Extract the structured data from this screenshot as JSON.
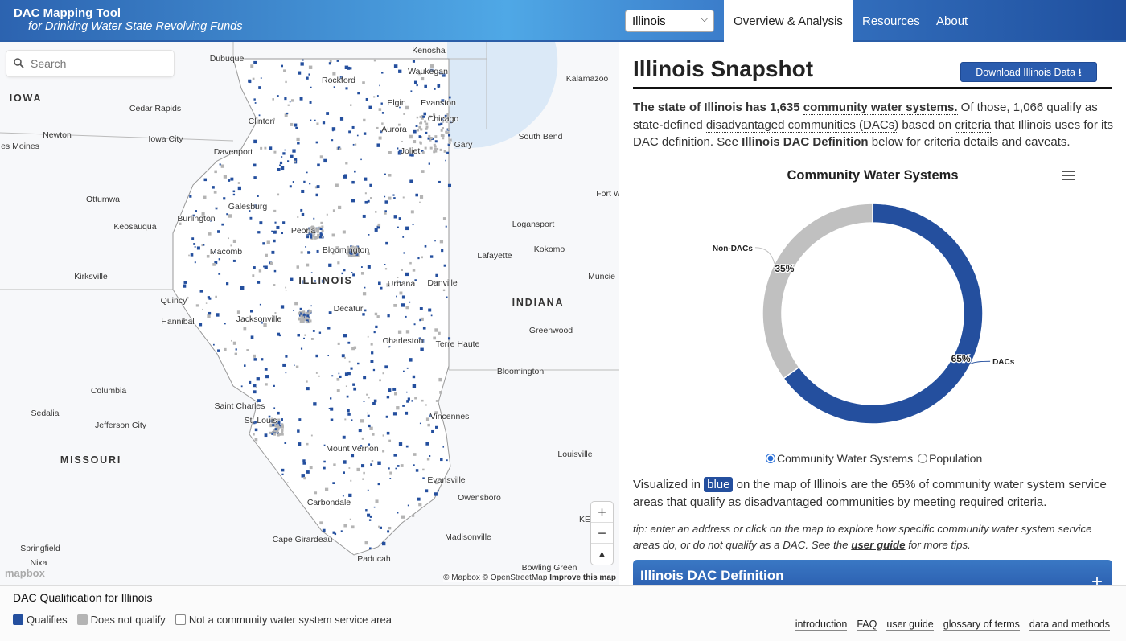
{
  "header": {
    "title": "DAC Mapping Tool",
    "subtitle": "for Drinking Water State Revolving Funds",
    "state_select": "Illinois",
    "nav": [
      "Overview & Analysis",
      "Resources",
      "About"
    ],
    "active_tab": "Overview & Analysis"
  },
  "map": {
    "search_placeholder": "Search",
    "labels": [
      "Kenosha",
      "Dubuque",
      "Waukegan",
      "Rockford",
      "Kalamazoo",
      "IOWA",
      "Elgin",
      "Evanston",
      "Cedar Rapids",
      "Chicago",
      "Clinton",
      "Aurora",
      "Newton",
      "Iowa City",
      "South Bend",
      "Gary",
      "es Moines",
      "Joliet",
      "Davenport",
      "Fort W",
      "Ottumwa",
      "Galesburg",
      "Burlington",
      "Keosauqua",
      "Logansport",
      "Peoria",
      "Kokomo",
      "Bloomington",
      "Macomb",
      "Lafayette",
      "Kirksville",
      "Muncie",
      "ILLINOIS",
      "Urbana",
      "Danville",
      "INDIANA",
      "Quincy",
      "Decatur",
      "Hannibal",
      "Jacksonville",
      "Greenwood",
      "Charleston",
      "Terre Haute",
      "Bloomington",
      "Columbia",
      "Saint Charles",
      "Sedalia",
      "Vincennes",
      "St. Louis",
      "Jefferson City",
      "Louisville",
      "MISSOURI",
      "Mount Vernon",
      "Evansville",
      "Owensboro",
      "Carbondale",
      "KE",
      "Springfield",
      "Cape Girardeau",
      "Madisonville",
      "Paducah",
      "Nixa",
      "Bowling Green"
    ],
    "zoom_in": "+",
    "zoom_out": "−",
    "compass": "▲",
    "logo": "mapbox",
    "attribution": "© Mapbox © OpenStreetMap",
    "improve": "Improve this map",
    "colors": {
      "qualifies": "#244f9e",
      "not_qualify": "#b4b4b4",
      "water": "#dbe9f7"
    }
  },
  "panel": {
    "title": "Illinois Snapshot",
    "download": "Download Illinois Data",
    "intro": {
      "p1": "The state of Illinois has 1,635 ",
      "l1": "community water systems.",
      "p2": " Of those, 1,066 qualify as state-defined ",
      "l2": "disadvantaged communities (DACs)",
      "p3": " based on ",
      "l3": "criteria",
      "p4": " that Illinois uses for its DAC definition. See ",
      "b1": "Illinois DAC Definition",
      "p5": " below for criteria details and caveats."
    },
    "radios": [
      "Community Water Systems",
      "Population"
    ],
    "radio_selected": "Community Water Systems",
    "vis": {
      "p1": "Visualized in ",
      "badge": "blue",
      "p2": " on the map of Illinois are the 65% of community water system service areas that qualify as disadvantaged communities by meeting required criteria."
    },
    "tip": {
      "p1": "tip: enter an address or click on the map to explore how specific community water system service areas do, or do not qualify as a DAC. See the ",
      "link": "user guide",
      "p2": " for more tips."
    },
    "definition_header": "Illinois DAC Definition",
    "expand": "+"
  },
  "chart_data": {
    "type": "pie",
    "donut": true,
    "title": "Community Water Systems",
    "categories": [
      "DACs",
      "Non-DACs"
    ],
    "values": [
      65,
      35
    ],
    "data_labels": [
      "65%",
      "35%"
    ],
    "colors": [
      "#244f9e",
      "#c0c0c0"
    ]
  },
  "footer": {
    "title": "DAC Qualification for Illinois",
    "legend": [
      "Qualifies",
      "Does not qualify",
      "Not a community water system service area"
    ],
    "links": [
      "introduction",
      "FAQ",
      "user guide",
      "glossary of terms",
      "data and methods"
    ]
  }
}
